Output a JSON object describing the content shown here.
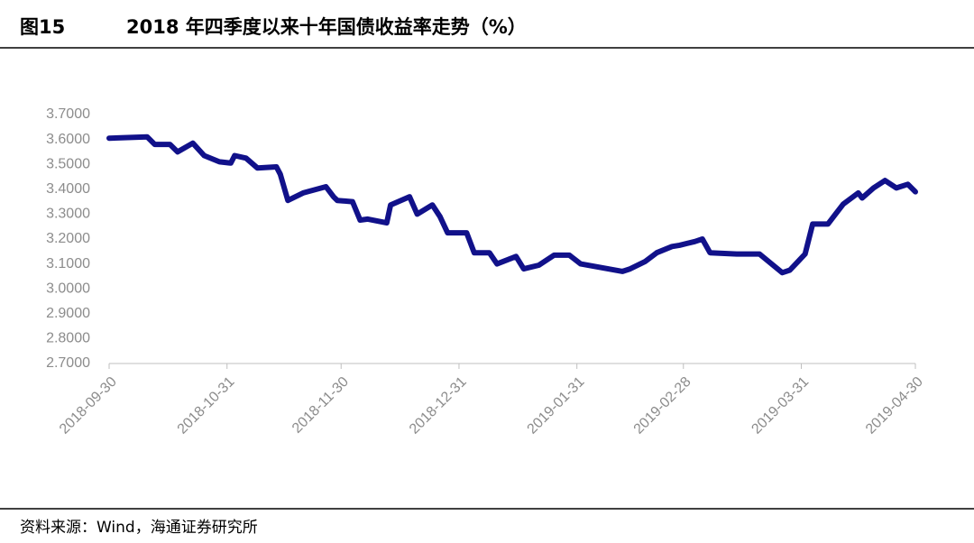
{
  "chart_data": {
    "type": "line",
    "figure_label": "图15",
    "title": "2018 年四季度以来十年国债收益率走势（%）",
    "source": "资料来源：Wind，海通证券研究所",
    "x": [
      "2018-09-30",
      "2018-10-10",
      "2018-10-12",
      "2018-10-16",
      "2018-10-18",
      "2018-10-22",
      "2018-10-25",
      "2018-10-29",
      "2018-11-01",
      "2018-11-02",
      "2018-11-05",
      "2018-11-08",
      "2018-11-13",
      "2018-11-14",
      "2018-11-16",
      "2018-11-20",
      "2018-11-26",
      "2018-11-28",
      "2018-11-29",
      "2018-12-03",
      "2018-12-05",
      "2018-12-07",
      "2018-12-12",
      "2018-12-13",
      "2018-12-18",
      "2018-12-20",
      "2018-12-24",
      "2018-12-26",
      "2018-12-28",
      "2019-01-02",
      "2019-01-04",
      "2019-01-08",
      "2019-01-10",
      "2019-01-15",
      "2019-01-17",
      "2019-01-21",
      "2019-01-25",
      "2019-01-29",
      "2019-02-01",
      "2019-02-12",
      "2019-02-14",
      "2019-02-18",
      "2019-02-21",
      "2019-02-25",
      "2019-02-27",
      "2019-03-03",
      "2019-03-05",
      "2019-03-07",
      "2019-03-14",
      "2019-03-20",
      "2019-03-24",
      "2019-03-26",
      "2019-03-28",
      "2019-04-01",
      "2019-04-03",
      "2019-04-07",
      "2019-04-09",
      "2019-04-11",
      "2019-04-15",
      "2019-04-16",
      "2019-04-19",
      "2019-04-22",
      "2019-04-25",
      "2019-04-28",
      "2019-04-30"
    ],
    "series": [
      {
        "name": "十年国债收益率",
        "color": "#11118a",
        "values": [
          3.605,
          3.61,
          3.58,
          3.58,
          3.55,
          3.585,
          3.535,
          3.51,
          3.505,
          3.535,
          3.525,
          3.485,
          3.49,
          3.46,
          3.355,
          3.385,
          3.41,
          3.37,
          3.355,
          3.35,
          3.276,
          3.28,
          3.265,
          3.337,
          3.37,
          3.3,
          3.337,
          3.29,
          3.225,
          3.225,
          3.145,
          3.145,
          3.1,
          3.13,
          3.08,
          3.095,
          3.135,
          3.135,
          3.1,
          3.07,
          3.08,
          3.11,
          3.145,
          3.17,
          3.175,
          3.19,
          3.2,
          3.145,
          3.14,
          3.14,
          3.09,
          3.065,
          3.075,
          3.14,
          3.26,
          3.26,
          3.3,
          3.34,
          3.385,
          3.365,
          3.405,
          3.435,
          3.405,
          3.42,
          3.39
        ]
      }
    ],
    "xlim": [
      "2018-09-30",
      "2019-04-30"
    ],
    "xticks": [
      "2018-09-30",
      "2018-10-31",
      "2018-11-30",
      "2018-12-31",
      "2019-01-31",
      "2019-02-28",
      "2019-03-31",
      "2019-04-30"
    ],
    "ylim": [
      2.7,
      3.7
    ],
    "yticks": [
      {
        "value": 2.7,
        "label": "2.7000"
      },
      {
        "value": 2.8,
        "label": "2.8000"
      },
      {
        "value": 2.9,
        "label": "2.9000"
      },
      {
        "value": 3.0,
        "label": "3.0000"
      },
      {
        "value": 3.1,
        "label": "3.1000"
      },
      {
        "value": 3.2,
        "label": "3.2000"
      },
      {
        "value": 3.3,
        "label": "3.3000"
      },
      {
        "value": 3.4,
        "label": "3.4000"
      },
      {
        "value": 3.5,
        "label": "3.5000"
      },
      {
        "value": 3.6,
        "label": "3.6000"
      },
      {
        "value": 3.7,
        "label": "3.7000"
      }
    ],
    "grid": false
  }
}
